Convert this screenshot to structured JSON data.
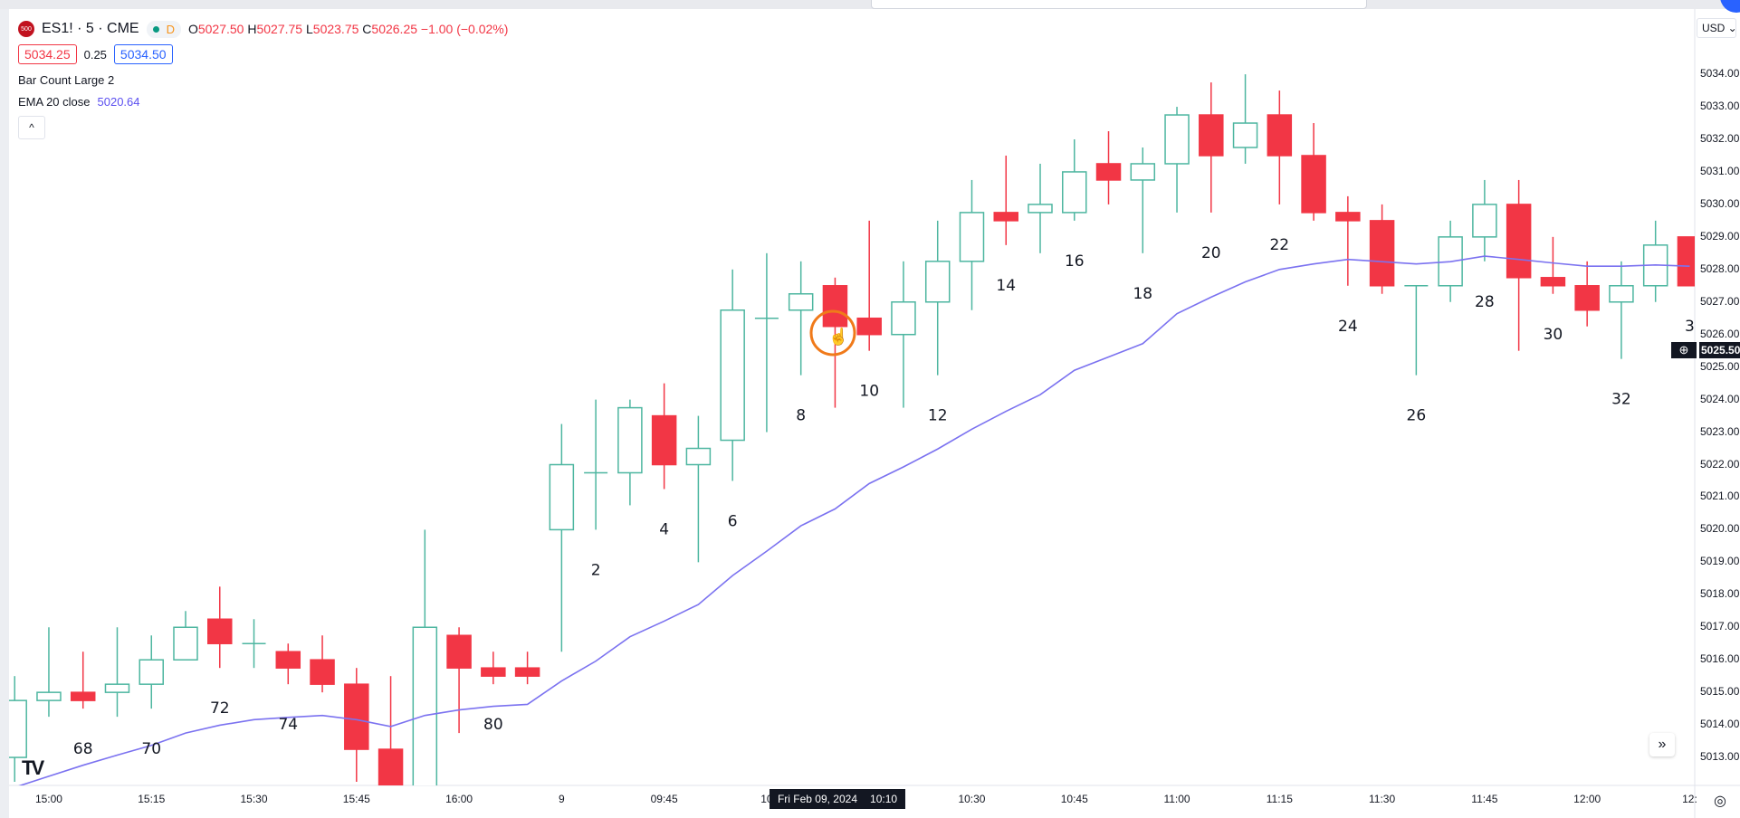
{
  "header": {
    "exchange_logo": "500",
    "symbol": "ES1! · 5 · CME",
    "status_letter": "D",
    "ohlc": {
      "o_label": "O",
      "o": "5027.50",
      "h_label": "H",
      "h": "5027.75",
      "l_label": "L",
      "l": "5023.75",
      "c_label": "C",
      "c": "5026.25",
      "change": "−1.00 (−0.02%)"
    },
    "sell_price": "5034.25",
    "spread": "0.25",
    "buy_price": "5034.50",
    "indicator1": {
      "name": "Bar Count Large 2"
    },
    "indicator2": {
      "name": "EMA 20 close",
      "value": "5020.64"
    },
    "collapse_icon": "chevron-up-icon"
  },
  "colors": {
    "up": "#4db6a0",
    "down": "#f23645",
    "ema": "#7b72f0",
    "cursor_ring": "#f07a1a"
  },
  "price_axis": {
    "currency": "USD",
    "crosshair_price": "5025.50",
    "labels": [
      "5034.00",
      "5033.00",
      "5032.00",
      "5031.00",
      "5030.00",
      "5029.00",
      "5028.00",
      "5027.00",
      "5026.00",
      "5025.00",
      "5024.00",
      "5023.00",
      "5022.00",
      "5021.00",
      "5020.00",
      "5019.00",
      "5018.00",
      "5017.00",
      "5016.00",
      "5015.00",
      "5014.00",
      "5013.00"
    ]
  },
  "time_axis": {
    "labels": [
      {
        "bar": 1,
        "text": "15:00"
      },
      {
        "bar": 4,
        "text": "15:15"
      },
      {
        "bar": 7,
        "text": "15:30"
      },
      {
        "bar": 10,
        "text": "15:45"
      },
      {
        "bar": 13,
        "text": "16:00"
      },
      {
        "bar": 16,
        "text": "9"
      },
      {
        "bar": 19,
        "text": "09:45"
      },
      {
        "bar": 22,
        "text": "10"
      },
      {
        "bar": 28,
        "text": "10:30"
      },
      {
        "bar": 31,
        "text": "10:45"
      },
      {
        "bar": 34,
        "text": "11:00"
      },
      {
        "bar": 37,
        "text": "11:15"
      },
      {
        "bar": 40,
        "text": "11:30"
      },
      {
        "bar": 43,
        "text": "11:45"
      },
      {
        "bar": 46,
        "text": "12:00"
      },
      {
        "bar": 49,
        "text": "12:"
      }
    ],
    "crosshair_date": "Fri Feb 09, 2024",
    "crosshair_time": "10:10"
  },
  "chart_data": {
    "type": "candlestick",
    "title": "ES1! · 5 · CME",
    "ylim": [
      5012.5,
      5034.5
    ],
    "ohlc": [
      [
        5013.0,
        5015.5,
        5012.25,
        5014.75
      ],
      [
        5014.75,
        5017.0,
        5014.25,
        5015.0
      ],
      [
        5015.0,
        5016.25,
        5014.5,
        5014.75
      ],
      [
        5015.0,
        5017.0,
        5014.25,
        5015.25
      ],
      [
        5015.25,
        5016.75,
        5014.5,
        5016.0
      ],
      [
        5016.0,
        5017.5,
        5016.0,
        5017.0
      ],
      [
        5017.25,
        5018.25,
        5015.75,
        5016.5
      ],
      [
        5016.5,
        5017.25,
        5015.75,
        5016.5
      ],
      [
        5016.25,
        5016.5,
        5015.25,
        5015.75
      ],
      [
        5016.0,
        5016.75,
        5015.0,
        5015.25
      ],
      [
        5015.25,
        5015.75,
        5012.25,
        5013.25
      ],
      [
        5013.25,
        5015.5,
        5011.5,
        5012.0
      ],
      [
        5012.0,
        5020.0,
        5011.0,
        5017.0
      ],
      [
        5016.75,
        5017.0,
        5013.75,
        5015.75
      ],
      [
        5015.75,
        5016.25,
        5015.25,
        5015.5
      ],
      [
        5015.75,
        5016.25,
        5015.25,
        5015.5
      ],
      [
        5020.0,
        5023.25,
        5016.25,
        5022.0
      ],
      [
        5021.75,
        5024.0,
        5020.0,
        5021.75
      ],
      [
        5021.75,
        5024.0,
        5020.75,
        5023.75
      ],
      [
        5023.5,
        5024.5,
        5021.25,
        5022.0
      ],
      [
        5022.0,
        5023.5,
        5019.0,
        5022.5
      ],
      [
        5022.75,
        5028.0,
        5021.5,
        5026.75
      ],
      [
        5026.5,
        5028.5,
        5023.0,
        5026.5
      ],
      [
        5026.75,
        5028.25,
        5024.75,
        5027.25
      ],
      [
        5027.5,
        5027.75,
        5023.75,
        5026.25
      ],
      [
        5026.5,
        5029.5,
        5025.5,
        5026.0
      ],
      [
        5026.0,
        5028.25,
        5023.75,
        5027.0
      ],
      [
        5027.0,
        5029.5,
        5024.75,
        5028.25
      ],
      [
        5028.25,
        5030.75,
        5026.75,
        5029.75
      ],
      [
        5029.75,
        5031.5,
        5028.75,
        5029.5
      ],
      [
        5029.75,
        5031.25,
        5028.5,
        5030.0
      ],
      [
        5029.75,
        5032.0,
        5029.5,
        5031.0
      ],
      [
        5031.25,
        5032.25,
        5030.0,
        5030.75
      ],
      [
        5030.75,
        5031.75,
        5028.5,
        5031.25
      ],
      [
        5031.25,
        5033.0,
        5029.75,
        5032.75
      ],
      [
        5032.75,
        5033.75,
        5029.75,
        5031.5
      ],
      [
        5031.75,
        5034.0,
        5031.25,
        5032.5
      ],
      [
        5032.75,
        5033.5,
        5030.0,
        5031.5
      ],
      [
        5031.5,
        5032.5,
        5029.5,
        5029.75
      ],
      [
        5029.75,
        5030.25,
        5027.5,
        5029.5
      ],
      [
        5029.5,
        5030.0,
        5027.25,
        5027.5
      ],
      [
        5027.5,
        5027.5,
        5024.75,
        5027.5
      ],
      [
        5027.5,
        5029.5,
        5027.0,
        5029.0
      ],
      [
        5029.0,
        5030.75,
        5028.25,
        5030.0
      ],
      [
        5030.0,
        5030.75,
        5025.5,
        5027.75
      ],
      [
        5027.75,
        5029.0,
        5027.25,
        5027.5
      ],
      [
        5027.5,
        5028.25,
        5026.25,
        5026.75
      ],
      [
        5027.0,
        5028.25,
        5025.25,
        5027.5
      ],
      [
        5027.5,
        5029.5,
        5027.0,
        5028.75
      ],
      [
        5029.0,
        5029.0,
        5027.5,
        5027.5
      ]
    ],
    "ema": [
      5012.08,
      5012.42,
      5012.76,
      5013.07,
      5013.37,
      5013.75,
      5013.99,
      5014.16,
      5014.23,
      5014.29,
      5014.16,
      5013.95,
      5014.29,
      5014.46,
      5014.57,
      5014.63,
      5015.35,
      5015.96,
      5016.71,
      5017.19,
      5017.7,
      5018.59,
      5019.34,
      5020.12,
      5020.64,
      5021.42,
      5021.93,
      5022.48,
      5023.09,
      5023.64,
      5024.15,
      5024.9,
      5025.31,
      5025.72,
      5026.64,
      5027.15,
      5027.62,
      5028.0,
      5028.17,
      5028.31,
      5028.24,
      5028.17,
      5028.24,
      5028.41,
      5028.31,
      5028.2,
      5028.1,
      5028.1,
      5028.14,
      5028.1
    ],
    "bar_count_labels": [
      {
        "bar": 2,
        "text": "68"
      },
      {
        "bar": 4,
        "text": "70"
      },
      {
        "bar": 6,
        "text": "72"
      },
      {
        "bar": 8,
        "text": "74"
      },
      {
        "bar": 14,
        "text": "80"
      },
      {
        "bar": 17,
        "text": "2"
      },
      {
        "bar": 19,
        "text": "4"
      },
      {
        "bar": 21,
        "text": "6"
      },
      {
        "bar": 23,
        "text": "8"
      },
      {
        "bar": 25,
        "text": "10"
      },
      {
        "bar": 27,
        "text": "12"
      },
      {
        "bar": 29,
        "text": "14"
      },
      {
        "bar": 31,
        "text": "16"
      },
      {
        "bar": 33,
        "text": "18"
      },
      {
        "bar": 35,
        "text": "20"
      },
      {
        "bar": 37,
        "text": "22"
      },
      {
        "bar": 39,
        "text": "24"
      },
      {
        "bar": 41,
        "text": "26"
      },
      {
        "bar": 43,
        "text": "28"
      },
      {
        "bar": 45,
        "text": "30"
      },
      {
        "bar": 47,
        "text": "32"
      },
      {
        "bar": 49,
        "text": "3"
      }
    ]
  }
}
